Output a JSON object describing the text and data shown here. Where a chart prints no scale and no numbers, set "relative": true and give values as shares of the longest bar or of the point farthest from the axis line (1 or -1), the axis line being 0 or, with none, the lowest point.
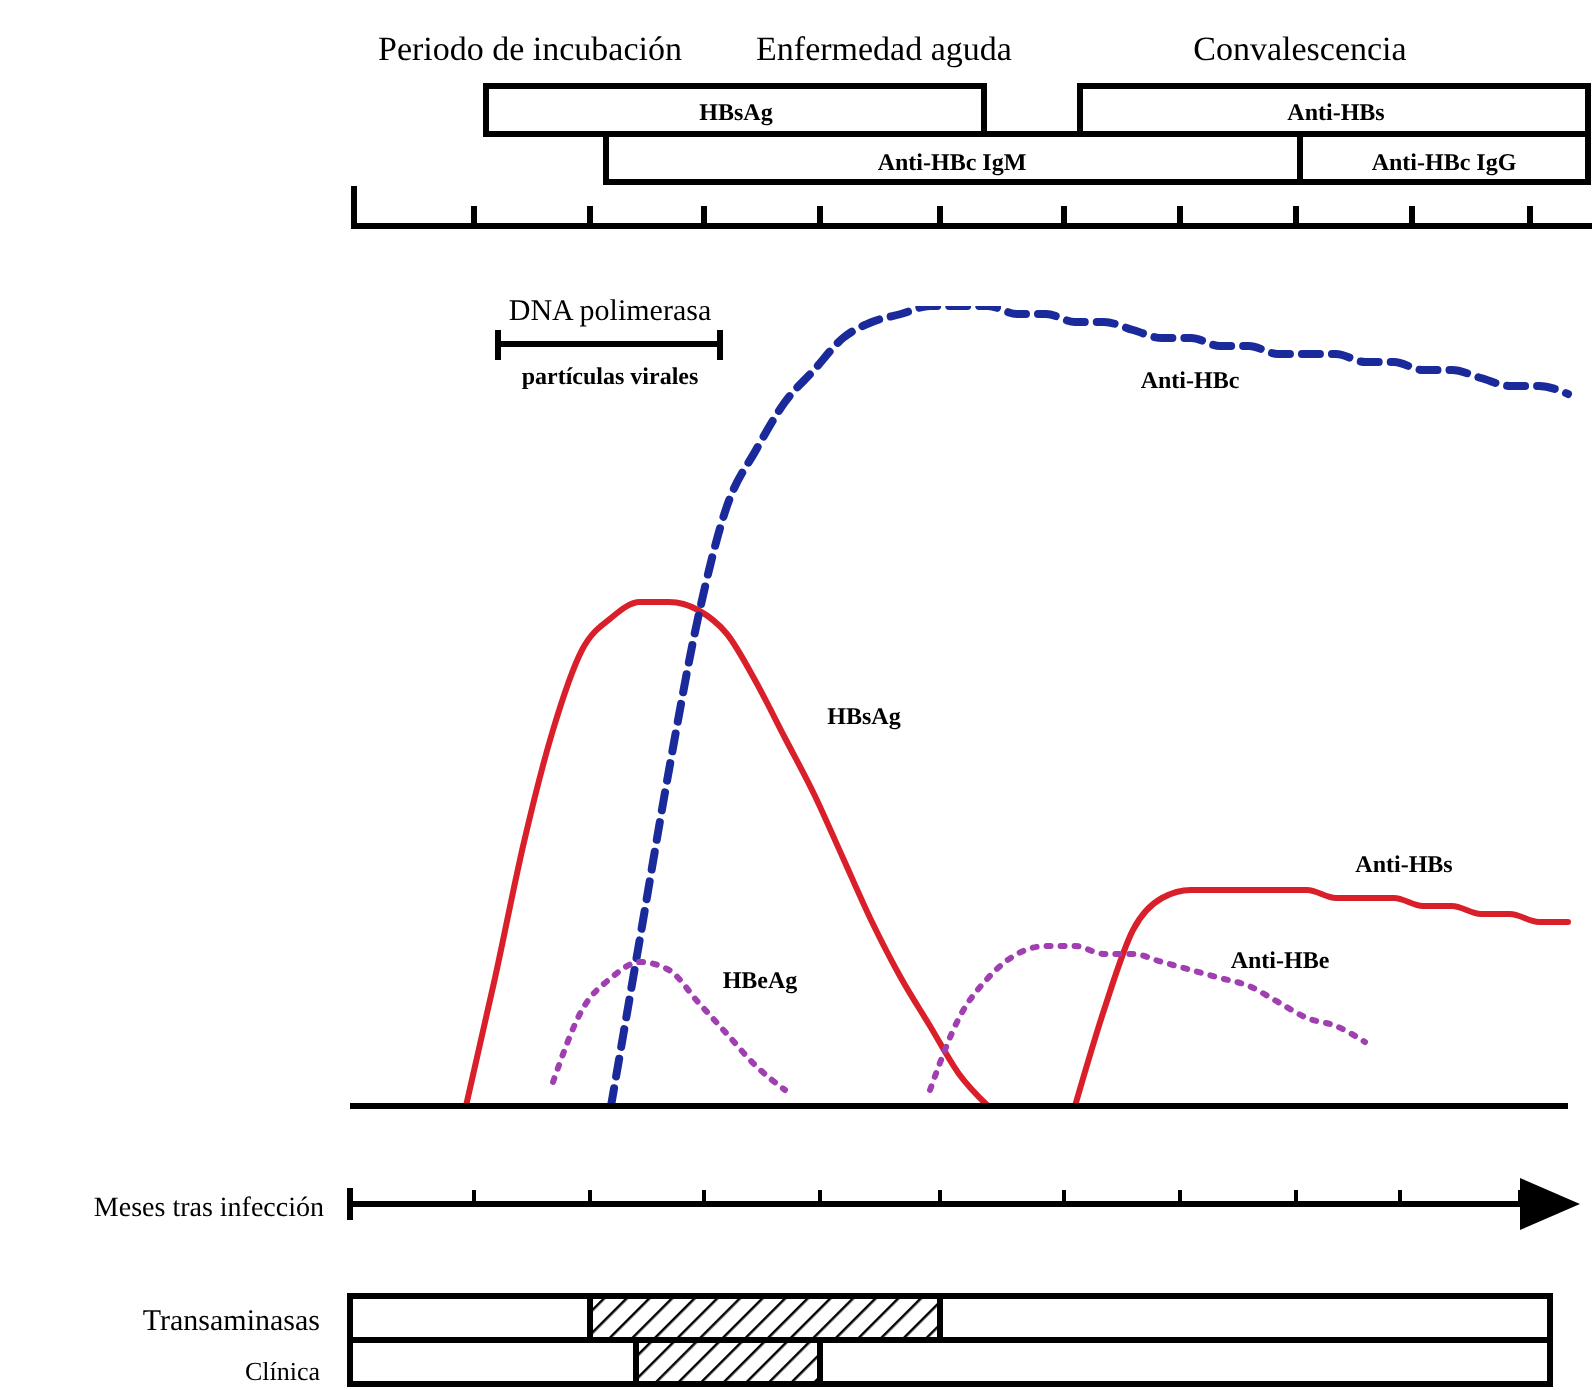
{
  "chart_data": {
    "type": "line",
    "relative": true,
    "xlabel": "Meses tras infección",
    "categories": [
      null,
      null,
      null,
      null,
      null,
      null,
      null,
      null,
      null,
      null,
      null,
      null,
      null,
      null,
      null,
      null,
      null,
      null,
      null,
      null,
      null,
      null,
      null,
      null,
      null,
      null,
      null,
      null,
      null,
      null,
      null,
      null,
      null,
      null,
      null,
      null,
      null,
      null,
      null,
      null,
      null,
      null,
      null
    ],
    "series": [
      {
        "name": "HBsAg",
        "color": "#d9202a",
        "line_style": "solid",
        "values": [
          null,
          null,
          null,
          null,
          0,
          0.16,
          0.33,
          0.47,
          0.57,
          0.61,
          0.63,
          0.63,
          0.62,
          0.59,
          0.53,
          0.46,
          0.39,
          0.31,
          0.23,
          0.16,
          0.1,
          0.04,
          0,
          null,
          null,
          null,
          null,
          null,
          null,
          null,
          null,
          null,
          null,
          null,
          null,
          null,
          null,
          null,
          null,
          null,
          null,
          null,
          null
        ]
      },
      {
        "name": "Anti-HBc",
        "color": "#1a2a9a",
        "line_style": "dashed",
        "values": [
          null,
          null,
          null,
          null,
          null,
          null,
          null,
          null,
          null,
          0,
          0.21,
          0.42,
          0.61,
          0.75,
          0.82,
          0.88,
          0.92,
          0.96,
          0.98,
          0.99,
          1,
          1,
          1,
          0.99,
          0.99,
          0.98,
          0.98,
          0.97,
          0.96,
          0.96,
          0.95,
          0.95,
          0.94,
          0.94,
          0.94,
          0.93,
          0.93,
          0.92,
          0.92,
          0.91,
          0.9,
          0.9,
          0.89
        ]
      },
      {
        "name": "HBeAg",
        "color": "#a040b0",
        "line_style": "dotted",
        "values": [
          null,
          null,
          null,
          null,
          null,
          null,
          null,
          0.03,
          0.12,
          0.16,
          0.18,
          0.17,
          0.13,
          0.09,
          0.05,
          0.02,
          null,
          null,
          null,
          null,
          null,
          null,
          null,
          null,
          null,
          null,
          null,
          null,
          null,
          null,
          null,
          null,
          null,
          null,
          null,
          null,
          null,
          null,
          null,
          null,
          null,
          null,
          null
        ]
      },
      {
        "name": "Anti-HBs",
        "color": "#d9202a",
        "line_style": "solid",
        "values": [
          null,
          null,
          null,
          null,
          null,
          null,
          null,
          null,
          null,
          null,
          null,
          null,
          null,
          null,
          null,
          null,
          null,
          null,
          null,
          null,
          null,
          null,
          null,
          null,
          null,
          0,
          0.12,
          0.22,
          0.26,
          0.27,
          0.27,
          0.27,
          0.27,
          0.27,
          0.26,
          0.26,
          0.26,
          0.25,
          0.25,
          0.24,
          0.24,
          0.23,
          0.23
        ]
      },
      {
        "name": "Anti-HBe",
        "color": "#a040b0",
        "line_style": "dotted",
        "values": [
          null,
          null,
          null,
          null,
          null,
          null,
          null,
          null,
          null,
          null,
          null,
          null,
          null,
          null,
          null,
          null,
          null,
          null,
          null,
          null,
          0.02,
          0.11,
          0.16,
          0.19,
          0.2,
          0.2,
          0.19,
          0.19,
          0.18,
          0.17,
          0.16,
          0.15,
          0.13,
          0.11,
          0.1,
          0.08,
          null,
          null,
          null,
          null,
          null,
          null,
          null
        ]
      }
    ],
    "annotations": [
      "Periodo de incubación",
      "Enfermedad aguda",
      "Convalescencia",
      "HBsAg",
      "Anti-HBs",
      "Anti-HBc IgM",
      "Anti-HBc IgG",
      "DNA polimerasa",
      "partículas virales",
      "Transaminasas",
      "Clínica"
    ]
  }
}
